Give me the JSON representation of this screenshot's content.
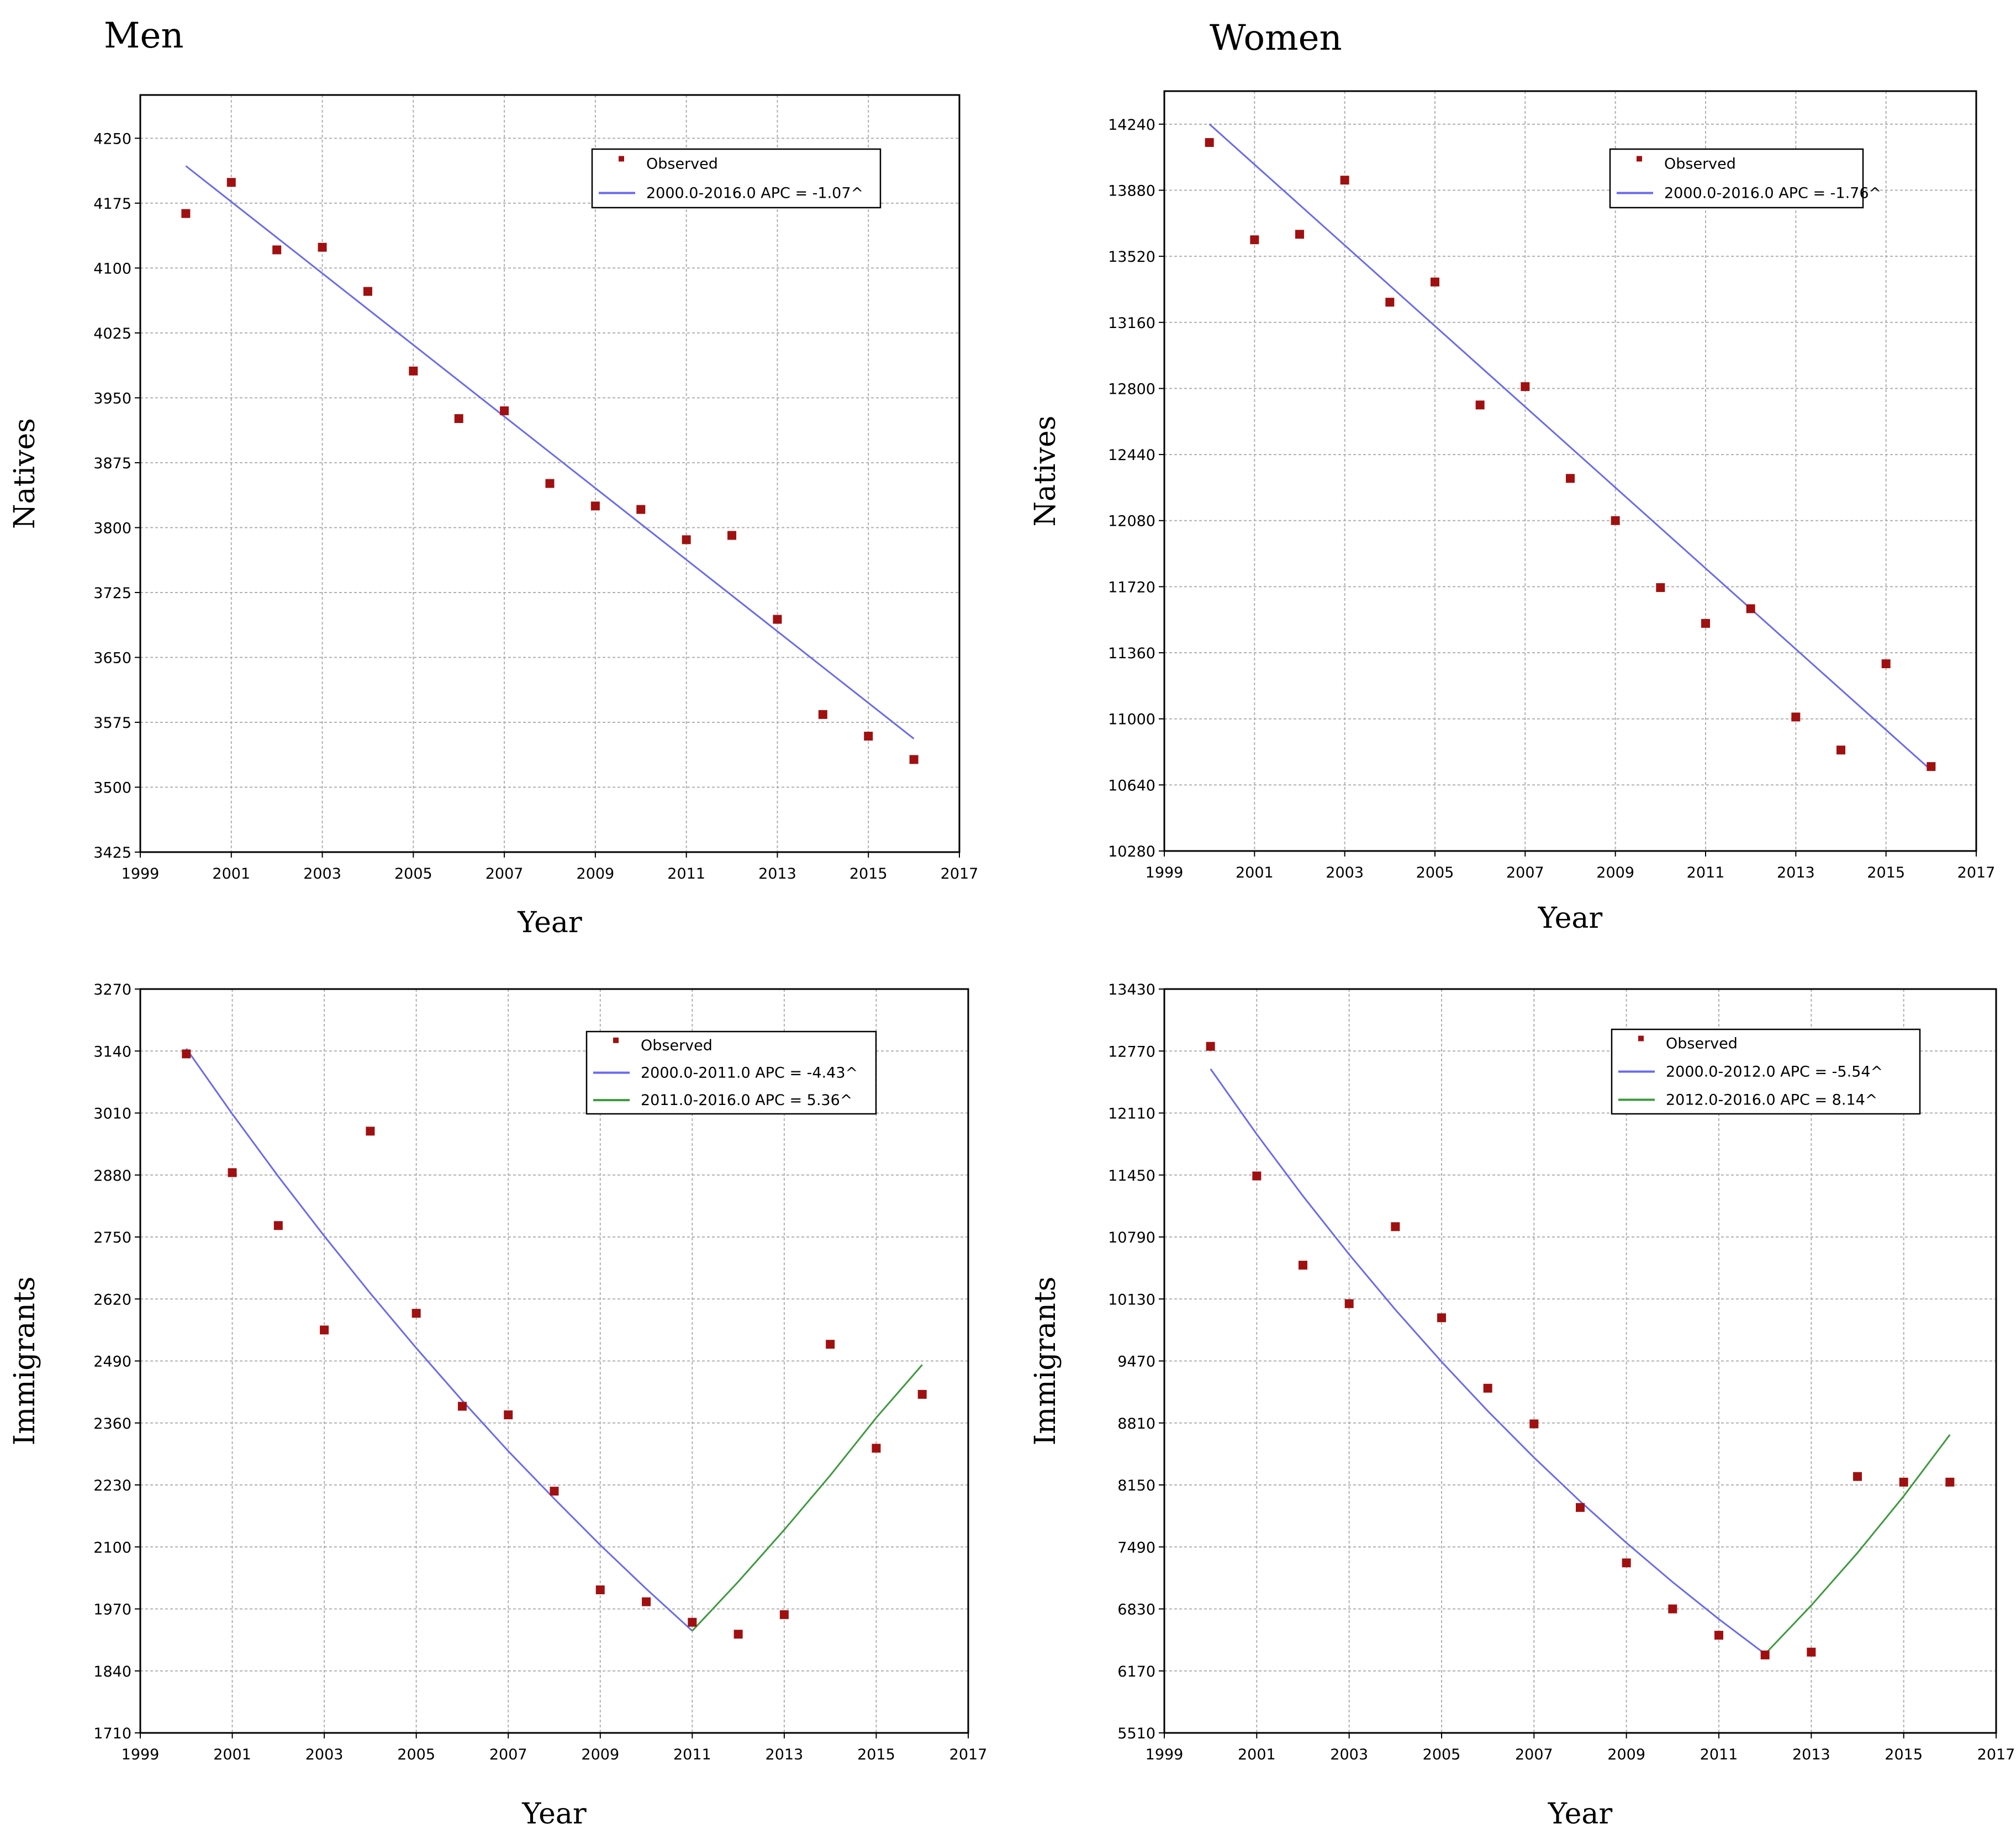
{
  "column_titles": {
    "men": "Men",
    "women": "Women"
  },
  "colors": {
    "observed": "#a01010",
    "segment1": "#6a6af0",
    "segment2": "#3c9a3c"
  },
  "chart_data": [
    {
      "id": "men-natives",
      "type": "scatter",
      "xlabel": "Year",
      "ylabel": "Natives",
      "xlim": [
        1999,
        2017
      ],
      "xticks": [
        1999,
        2001,
        2003,
        2005,
        2007,
        2009,
        2011,
        2013,
        2015,
        2017
      ],
      "ylim": [
        3425,
        4300
      ],
      "yticks": [
        3425,
        3500,
        3575,
        3650,
        3725,
        3800,
        3875,
        3950,
        4025,
        4100,
        4175,
        4250
      ],
      "observed": {
        "x": [
          2000,
          2001,
          2002,
          2003,
          2004,
          2005,
          2006,
          2007,
          2008,
          2009,
          2010,
          2011,
          2012,
          2013,
          2014,
          2015,
          2016
        ],
        "y": [
          4163,
          4199,
          4121,
          4124,
          4073,
          3981,
          3926,
          3935,
          3851,
          3825,
          3821,
          3786,
          3791,
          3694,
          3584,
          3559,
          3532
        ]
      },
      "fits": [
        {
          "x": [
            2000,
            2016
          ],
          "y": [
            4218,
            3556
          ],
          "color_key": "segment1"
        }
      ],
      "legend": [
        {
          "kind": "marker",
          "label": "Observed"
        },
        {
          "kind": "line",
          "color_key": "segment1",
          "label": "2000.0-2016.0 APC  = -1.07^"
        }
      ]
    },
    {
      "id": "women-natives",
      "type": "scatter",
      "xlabel": "Year",
      "ylabel": "Natives",
      "xlim": [
        1999,
        2017
      ],
      "xticks": [
        1999,
        2001,
        2003,
        2005,
        2007,
        2009,
        2011,
        2013,
        2015,
        2017
      ],
      "ylim": [
        10280,
        14420
      ],
      "yticks": [
        10280,
        10640,
        11000,
        11360,
        11720,
        12080,
        12440,
        12800,
        13160,
        13520,
        13880,
        14240
      ],
      "observed": {
        "x": [
          2000,
          2001,
          2002,
          2003,
          2004,
          2005,
          2006,
          2007,
          2008,
          2009,
          2010,
          2011,
          2012,
          2013,
          2014,
          2015,
          2016
        ],
        "y": [
          14140,
          13610,
          13640,
          13935,
          13270,
          13380,
          12710,
          12810,
          12310,
          12080,
          11715,
          11520,
          11600,
          11010,
          10830,
          11300,
          10740
        ]
      },
      "fits": [
        {
          "x": [
            2000,
            2016
          ],
          "y": [
            14240,
            10720
          ],
          "color_key": "segment1"
        }
      ],
      "legend": [
        {
          "kind": "marker",
          "label": "Observed"
        },
        {
          "kind": "line",
          "color_key": "segment1",
          "label": "2000.0-2016.0 APC  = -1.76^"
        }
      ]
    },
    {
      "id": "men-immigrants",
      "type": "scatter",
      "xlabel": "Year",
      "ylabel": "Immigrants",
      "xlim": [
        1999,
        2017
      ],
      "xticks": [
        1999,
        2001,
        2003,
        2005,
        2007,
        2009,
        2011,
        2013,
        2015,
        2017
      ],
      "ylim": [
        1710,
        3270
      ],
      "yticks": [
        1710,
        1840,
        1970,
        2100,
        2230,
        2360,
        2490,
        2620,
        2750,
        2880,
        3010,
        3140,
        3270
      ],
      "observed": {
        "x": [
          2000,
          2001,
          2002,
          2003,
          2004,
          2005,
          2006,
          2007,
          2008,
          2009,
          2010,
          2011,
          2012,
          2013,
          2014,
          2015,
          2016
        ],
        "y": [
          3134,
          2885,
          2774,
          2555,
          2972,
          2590,
          2395,
          2377,
          2217,
          2010,
          1985,
          1942,
          1917,
          1958,
          2525,
          2307,
          2420
        ]
      },
      "fits": [
        {
          "x": [
            2000,
            2001,
            2002,
            2003,
            2004,
            2005,
            2006,
            2007,
            2008,
            2009,
            2010,
            2011
          ],
          "y": [
            3145,
            3008,
            2877,
            2752,
            2632,
            2517,
            2407,
            2301,
            2201,
            2104,
            2012,
            1924
          ],
          "color_key": "segment1"
        },
        {
          "x": [
            2011,
            2012,
            2013,
            2014,
            2015,
            2016
          ],
          "y": [
            1924,
            2027,
            2136,
            2250,
            2371,
            2482
          ],
          "color_key": "segment2"
        }
      ],
      "legend": [
        {
          "kind": "marker",
          "label": "Observed"
        },
        {
          "kind": "line",
          "color_key": "segment1",
          "label": "2000.0-2011.0 APC  = -4.43^"
        },
        {
          "kind": "line",
          "color_key": "segment2",
          "label": "2011.0-2016.0 APC  = 5.36^"
        }
      ]
    },
    {
      "id": "women-immigrants",
      "type": "scatter",
      "xlabel": "Year",
      "ylabel": "Immigrants",
      "xlim": [
        1999,
        2017
      ],
      "xticks": [
        1999,
        2001,
        2003,
        2005,
        2007,
        2009,
        2011,
        2013,
        2015,
        2017
      ],
      "ylim": [
        5510,
        13430
      ],
      "yticks": [
        5510,
        6170,
        6830,
        7490,
        8150,
        8810,
        9470,
        10130,
        10790,
        11450,
        12110,
        12770,
        13430
      ],
      "observed": {
        "x": [
          2000,
          2001,
          2002,
          2003,
          2004,
          2005,
          2006,
          2007,
          2008,
          2009,
          2010,
          2011,
          2012,
          2013,
          2014,
          2015,
          2016
        ],
        "y": [
          12820,
          11440,
          10490,
          10080,
          10900,
          9930,
          9180,
          8800,
          7910,
          7320,
          6830,
          6550,
          6340,
          6370,
          8240,
          8180,
          8180
        ]
      },
      "fits": [
        {
          "x": [
            2000,
            2001,
            2002,
            2003,
            2004,
            2005,
            2006,
            2007,
            2008,
            2009,
            2010,
            2011,
            2012
          ],
          "y": [
            12580,
            11884,
            11226,
            10604,
            10016,
            9462,
            8937,
            8442,
            7975,
            7533,
            7116,
            6722,
            6350
          ],
          "color_key": "segment1"
        },
        {
          "x": [
            2012,
            2013,
            2014,
            2015,
            2016
          ],
          "y": [
            6350,
            6867,
            7427,
            8031,
            8685
          ],
          "color_key": "segment2"
        }
      ],
      "legend": [
        {
          "kind": "marker",
          "label": "Observed"
        },
        {
          "kind": "line",
          "color_key": "segment1",
          "label": "2000.0-2012.0 APC  = -5.54^"
        },
        {
          "kind": "line",
          "color_key": "segment2",
          "label": "2012.0-2016.0 APC  = 8.14^"
        }
      ]
    }
  ]
}
